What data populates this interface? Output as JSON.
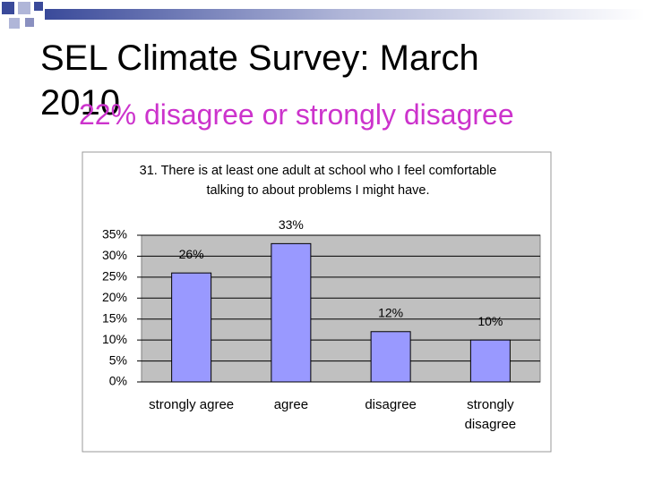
{
  "slide_title": "SEL Climate Survey: March 2010",
  "subtitle": "22% disagree or strongly disagree",
  "chart_data": {
    "type": "bar",
    "title": "31. There is at least one adult at school who I feel comfortable talking to about problems I might have.",
    "categories": [
      "strongly agree",
      "agree",
      "disagree",
      "strongly disagree"
    ],
    "values": [
      26,
      33,
      12,
      10
    ],
    "value_labels": [
      "26%",
      "33%",
      "12%",
      "10%"
    ],
    "color": "#9999ff",
    "ylim": [
      0,
      35
    ],
    "yticks": [
      {
        "value": 0,
        "label": "0%"
      },
      {
        "value": 5,
        "label": "5%"
      },
      {
        "value": 10,
        "label": "10%"
      },
      {
        "value": 15,
        "label": "15%"
      },
      {
        "value": 20,
        "label": "20%"
      },
      {
        "value": 25,
        "label": "25%"
      },
      {
        "value": 30,
        "label": "30%"
      },
      {
        "value": 35,
        "label": "35%"
      }
    ],
    "grid": true
  }
}
